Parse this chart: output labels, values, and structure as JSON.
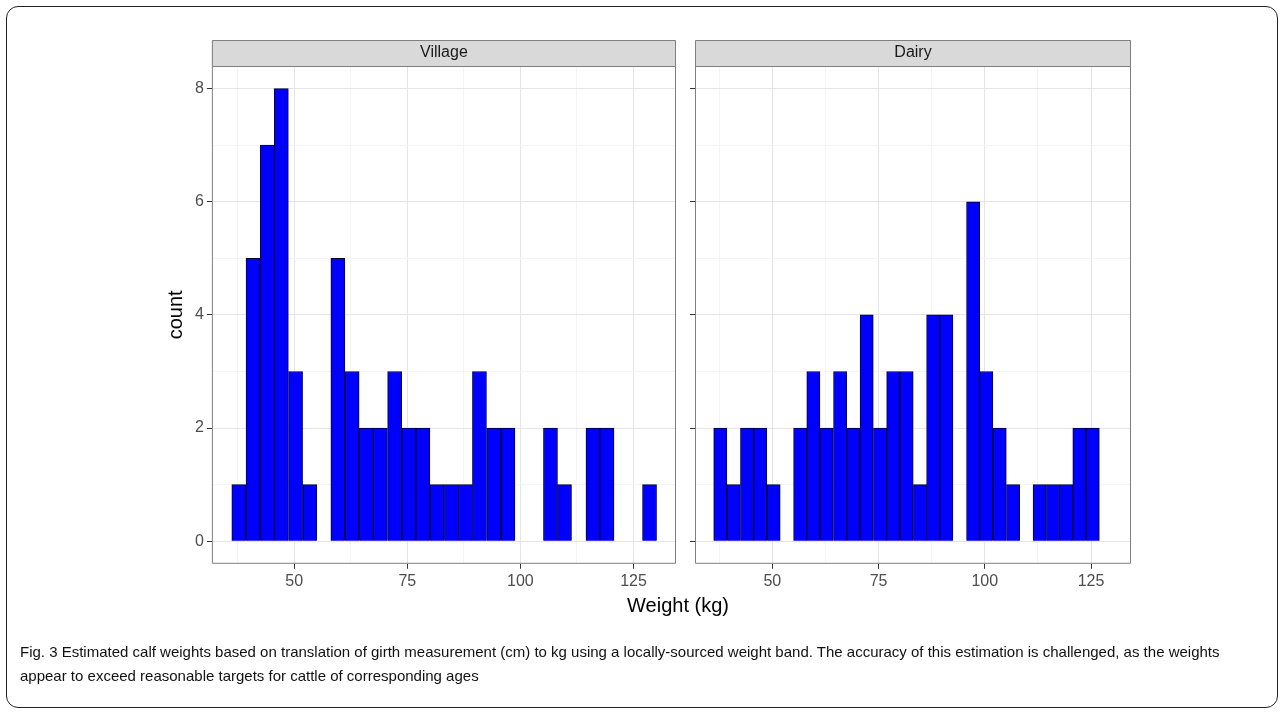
{
  "chart_data": [
    {
      "type": "histogram",
      "title": "Village",
      "ylabel": "count",
      "xlabel": "Weight (kg)",
      "color": "#0000ff",
      "bins": [
        36.2,
        39.3,
        42.5,
        45.6,
        48.7,
        51.9,
        55.0,
        58.1,
        61.2,
        64.4,
        67.5,
        70.6,
        73.8,
        76.9,
        80.0,
        83.2,
        86.3,
        89.4,
        92.5,
        95.7,
        98.8,
        101.9,
        105.1,
        108.2,
        111.3,
        114.5,
        117.6,
        120.7,
        123.8,
        127.0,
        130.1
      ],
      "values": [
        1,
        5,
        7,
        8,
        3,
        1,
        0,
        5,
        3,
        2,
        2,
        3,
        2,
        2,
        1,
        1,
        1,
        3,
        2,
        2,
        0,
        0,
        2,
        1,
        0,
        2,
        2,
        0,
        0,
        1
      ],
      "xlim": [
        31.8,
        134.4
      ],
      "xticks": [
        {
          "value": 37.5,
          "label": null
        },
        50,
        {
          "value": 62.5,
          "label": null
        },
        75,
        {
          "value": 87.5,
          "label": null
        },
        100,
        {
          "value": 112.5,
          "label": null
        },
        125
      ],
      "ylim": [
        -0.4,
        8.4
      ],
      "yticks": [
        0,
        {
          "value": 1,
          "label": null
        },
        2,
        {
          "value": 3,
          "label": null
        },
        4,
        {
          "value": 5,
          "label": null
        },
        6,
        {
          "value": 7,
          "label": null
        },
        8
      ],
      "grid": true,
      "annotations": [
        "Fig. 3 Estimated calf weights based on translation of girth measurement (cm) to kg using a locally-sourced weight band. The accuracy of this estimation is challenged, as the weights appear to exceed reasonable targets for cattle of corresponding ages"
      ]
    },
    {
      "type": "histogram",
      "title": "Dairy",
      "color": "#0000ff",
      "bins": [
        36.2,
        39.3,
        42.5,
        45.6,
        48.7,
        51.9,
        55.0,
        58.1,
        61.2,
        64.4,
        67.5,
        70.6,
        73.8,
        76.9,
        80.0,
        83.2,
        86.3,
        89.4,
        92.5,
        95.7,
        98.8,
        101.9,
        105.1,
        108.2,
        111.3,
        114.5,
        117.6,
        120.7,
        123.8,
        127.0,
        130.1
      ],
      "values": [
        2,
        1,
        2,
        2,
        1,
        0,
        2,
        3,
        2,
        3,
        2,
        4,
        2,
        3,
        3,
        1,
        4,
        4,
        0,
        6,
        3,
        2,
        1,
        0,
        1,
        1,
        1,
        2,
        2,
        0
      ],
      "xlim": [
        31.8,
        134.4
      ],
      "xticks": [
        {
          "value": 37.5,
          "label": null
        },
        50,
        {
          "value": 62.5,
          "label": null
        },
        75,
        {
          "value": 87.5,
          "label": null
        },
        100,
        {
          "value": 112.5,
          "label": null
        },
        125
      ],
      "ylim": [
        -0.4,
        8.4
      ],
      "yticks": [
        0,
        {
          "value": 1,
          "label": null
        },
        2,
        {
          "value": 3,
          "label": null
        },
        4,
        {
          "value": 5,
          "label": null
        },
        6,
        {
          "value": 7,
          "label": null
        },
        8
      ],
      "grid": true,
      "tick_labels": "x"
    }
  ]
}
